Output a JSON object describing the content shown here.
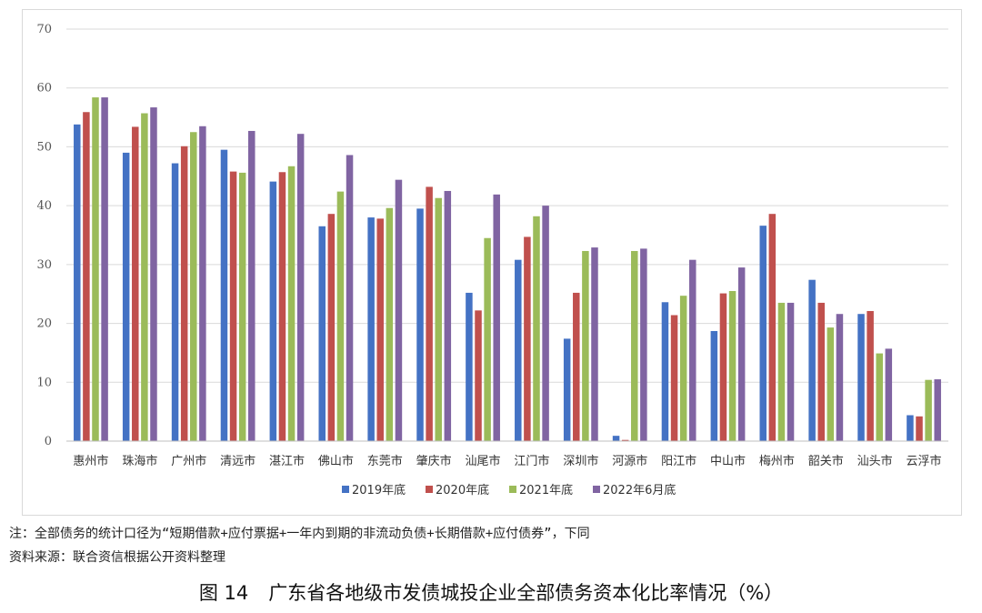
{
  "chart_data": {
    "type": "bar",
    "title": "",
    "xlabel": "",
    "ylabel": "",
    "ylim": [
      0,
      70
    ],
    "yticks": [
      0,
      10,
      20,
      30,
      40,
      50,
      60,
      70
    ],
    "grid": true,
    "legend_position": "bottom",
    "categories": [
      "惠州市",
      "珠海市",
      "广州市",
      "清远市",
      "湛江市",
      "佛山市",
      "东莞市",
      "肇庆市",
      "汕尾市",
      "江门市",
      "深圳市",
      "河源市",
      "阳江市",
      "中山市",
      "梅州市",
      "韶关市",
      "汕头市",
      "云浮市"
    ],
    "series": [
      {
        "name": "2019年底",
        "color": "#4472c4",
        "values": [
          53.8,
          49.0,
          47.2,
          49.5,
          44.1,
          36.5,
          38.0,
          39.5,
          25.2,
          30.8,
          17.4,
          0.9,
          23.6,
          18.7,
          36.6,
          27.4,
          21.6,
          4.4
        ]
      },
      {
        "name": "2020年底",
        "color": "#c0504d",
        "values": [
          55.9,
          53.4,
          50.1,
          45.8,
          45.7,
          38.6,
          37.8,
          43.2,
          22.2,
          34.7,
          25.2,
          0.2,
          21.4,
          25.1,
          38.6,
          23.5,
          22.1,
          4.2
        ]
      },
      {
        "name": "2021年底",
        "color": "#9bbb59",
        "values": [
          58.4,
          55.7,
          52.5,
          45.6,
          46.7,
          42.4,
          39.6,
          41.3,
          34.5,
          38.2,
          32.3,
          32.3,
          24.7,
          25.5,
          23.5,
          19.3,
          14.9,
          10.4
        ]
      },
      {
        "name": "2022年6月底",
        "color": "#8064a2",
        "values": [
          58.4,
          56.7,
          53.5,
          52.7,
          52.2,
          48.6,
          44.4,
          42.5,
          41.9,
          40.0,
          32.9,
          32.7,
          30.8,
          29.5,
          23.5,
          21.6,
          15.7,
          10.5
        ]
      }
    ]
  },
  "notes": {
    "line1": "注：全部债务的统计口径为“短期借款+应付票据+一年内到期的非流动负债+长期借款+应付债券”，下同",
    "line2": "资料来源：联合资信根据公开资料整理"
  },
  "caption": {
    "number": "图 14",
    "text": "广东省各地级市发债城投企业全部债务资本化比率情况（%）"
  }
}
